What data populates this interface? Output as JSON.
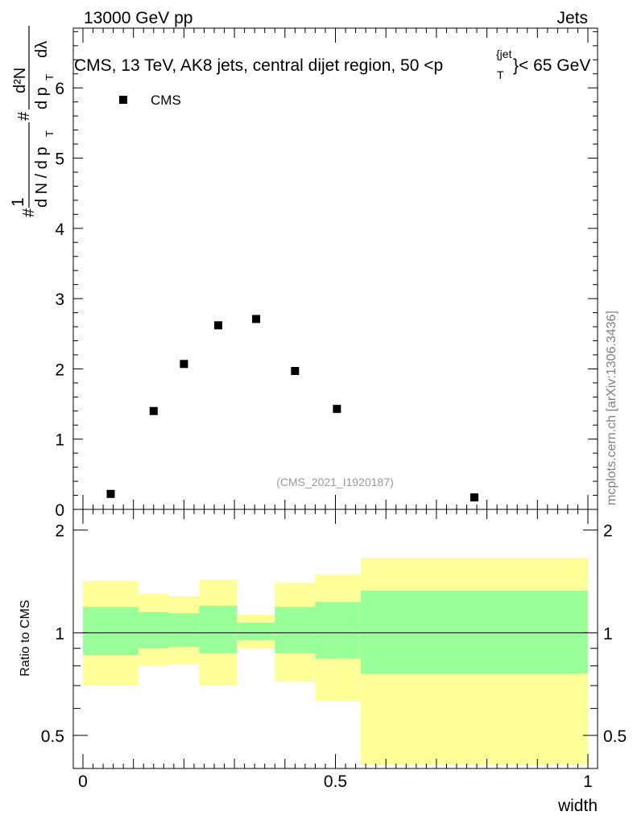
{
  "header": {
    "left": "13000 GeV pp",
    "right": "Jets"
  },
  "watermark": "mcplots.cern.ch [arXiv:1306.3436]",
  "colors": {
    "band_outer": "#ffff99",
    "band_inner": "#99ff99",
    "marker": "#000000"
  },
  "chart_data": [
    {
      "type": "scatter",
      "title": "CMS, 13 TeV, AK8 jets, central dijet region, 50 <p_T^{jet}< 65 GeV",
      "title_parts": {
        "prefix": "CMS, 13 TeV, AK8 jets, central dijet region, 50 <",
        "p": "p",
        "sub": "T",
        "sup": "{jet",
        "suffix": "}< 65 GeV"
      },
      "ylabel_parts": {
        "hash": "#",
        "one": "1",
        "den": "d N / d p",
        "sub": "T",
        "hash2": "#",
        "num2_top": "d²N",
        "num2_bot": "d p",
        "num2_bot_sub": "T",
        "lambda": "dλ"
      },
      "legend": [
        "CMS"
      ],
      "analysis_tag": "(CMS_2021_I1920187)",
      "xlim": [
        0,
        1
      ],
      "ylim": [
        0,
        6.85
      ],
      "yticks": [
        "0",
        "1",
        "2",
        "3",
        "4",
        "5",
        "6"
      ],
      "series": [
        {
          "name": "CMS",
          "x": [
            0.055,
            0.14,
            0.2,
            0.268,
            0.343,
            0.42,
            0.503,
            0.775
          ],
          "y": [
            0.22,
            1.4,
            2.07,
            2.62,
            2.71,
            1.97,
            1.43,
            0.17
          ]
        }
      ]
    },
    {
      "type": "area",
      "ylabel": "Ratio to CMS",
      "xlabel": "width",
      "xlim": [
        0,
        1
      ],
      "ylim": [
        0.4,
        2.3
      ],
      "log_y": true,
      "xticks": [
        "0",
        "0.5",
        "1"
      ],
      "yticks": [
        "0.5",
        "1",
        "2"
      ],
      "reference_line": 1,
      "bins": [
        {
          "lo": 0.0,
          "hi": 0.11,
          "inner": [
            0.86,
            1.19
          ],
          "outer": [
            0.7,
            1.42
          ]
        },
        {
          "lo": 0.11,
          "hi": 0.17,
          "inner": [
            0.9,
            1.15
          ],
          "outer": [
            0.8,
            1.3
          ]
        },
        {
          "lo": 0.17,
          "hi": 0.23,
          "inner": [
            0.91,
            1.14
          ],
          "outer": [
            0.81,
            1.28
          ]
        },
        {
          "lo": 0.23,
          "hi": 0.305,
          "inner": [
            0.87,
            1.2
          ],
          "outer": [
            0.7,
            1.43
          ]
        },
        {
          "lo": 0.305,
          "hi": 0.38,
          "inner": [
            0.95,
            1.07
          ],
          "outer": [
            0.9,
            1.13
          ]
        },
        {
          "lo": 0.38,
          "hi": 0.46,
          "inner": [
            0.87,
            1.19
          ],
          "outer": [
            0.72,
            1.4
          ]
        },
        {
          "lo": 0.46,
          "hi": 0.55,
          "inner": [
            0.84,
            1.23
          ],
          "outer": [
            0.63,
            1.48
          ]
        },
        {
          "lo": 0.55,
          "hi": 1.0,
          "inner": [
            0.76,
            1.33
          ],
          "outer": [
            0.41,
            1.66
          ]
        }
      ]
    }
  ]
}
